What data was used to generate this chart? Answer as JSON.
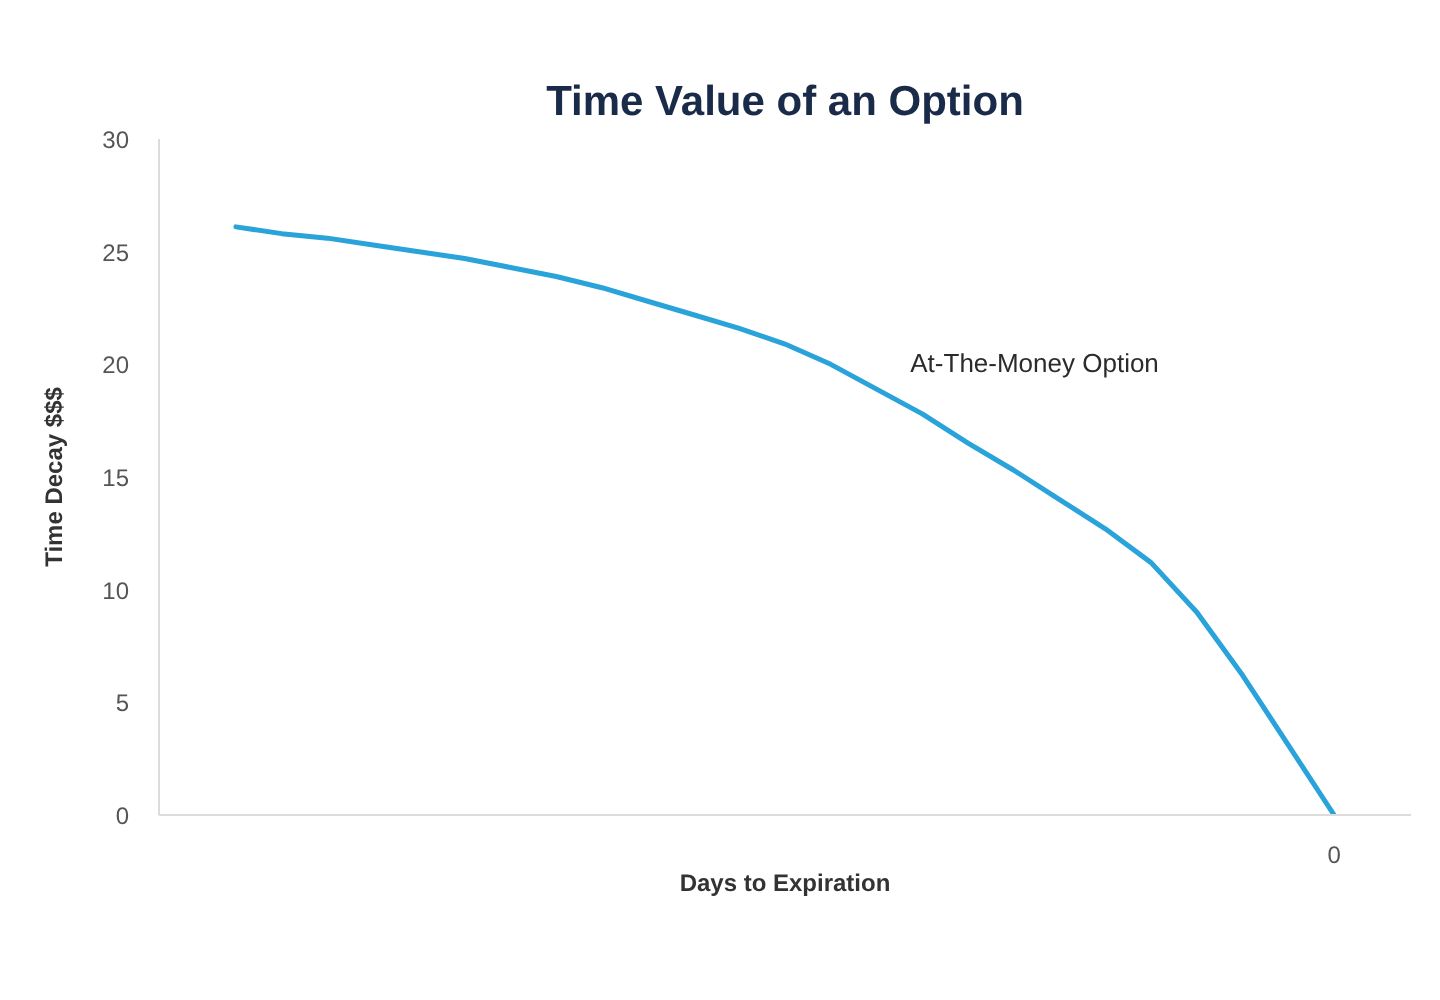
{
  "chart_data": {
    "type": "line",
    "title": "Time Value of an Option",
    "xlabel": "Days to Expiration",
    "ylabel": "Time Decay $$$",
    "categories": [
      null,
      null,
      null,
      null,
      null,
      null,
      null,
      null,
      null,
      null,
      null,
      null,
      null,
      null,
      null,
      null,
      null,
      null,
      null,
      null,
      null,
      null,
      null,
      null,
      "0"
    ],
    "series": [
      {
        "name": "At-The-Money Option",
        "color": "#29a3da",
        "values": [
          26.1,
          25.8,
          25.6,
          25.3,
          25.0,
          24.7,
          24.3,
          23.9,
          23.4,
          22.8,
          22.2,
          21.6,
          20.9,
          20.0,
          18.9,
          17.8,
          16.5,
          15.3,
          14.0,
          12.7,
          11.2,
          9.0,
          6.2,
          3.1,
          0
        ]
      }
    ],
    "ylim": [
      0,
      30
    ],
    "yticks": [
      0,
      5,
      10,
      15,
      20,
      25,
      30
    ],
    "grid": false,
    "line_style": "solid"
  }
}
